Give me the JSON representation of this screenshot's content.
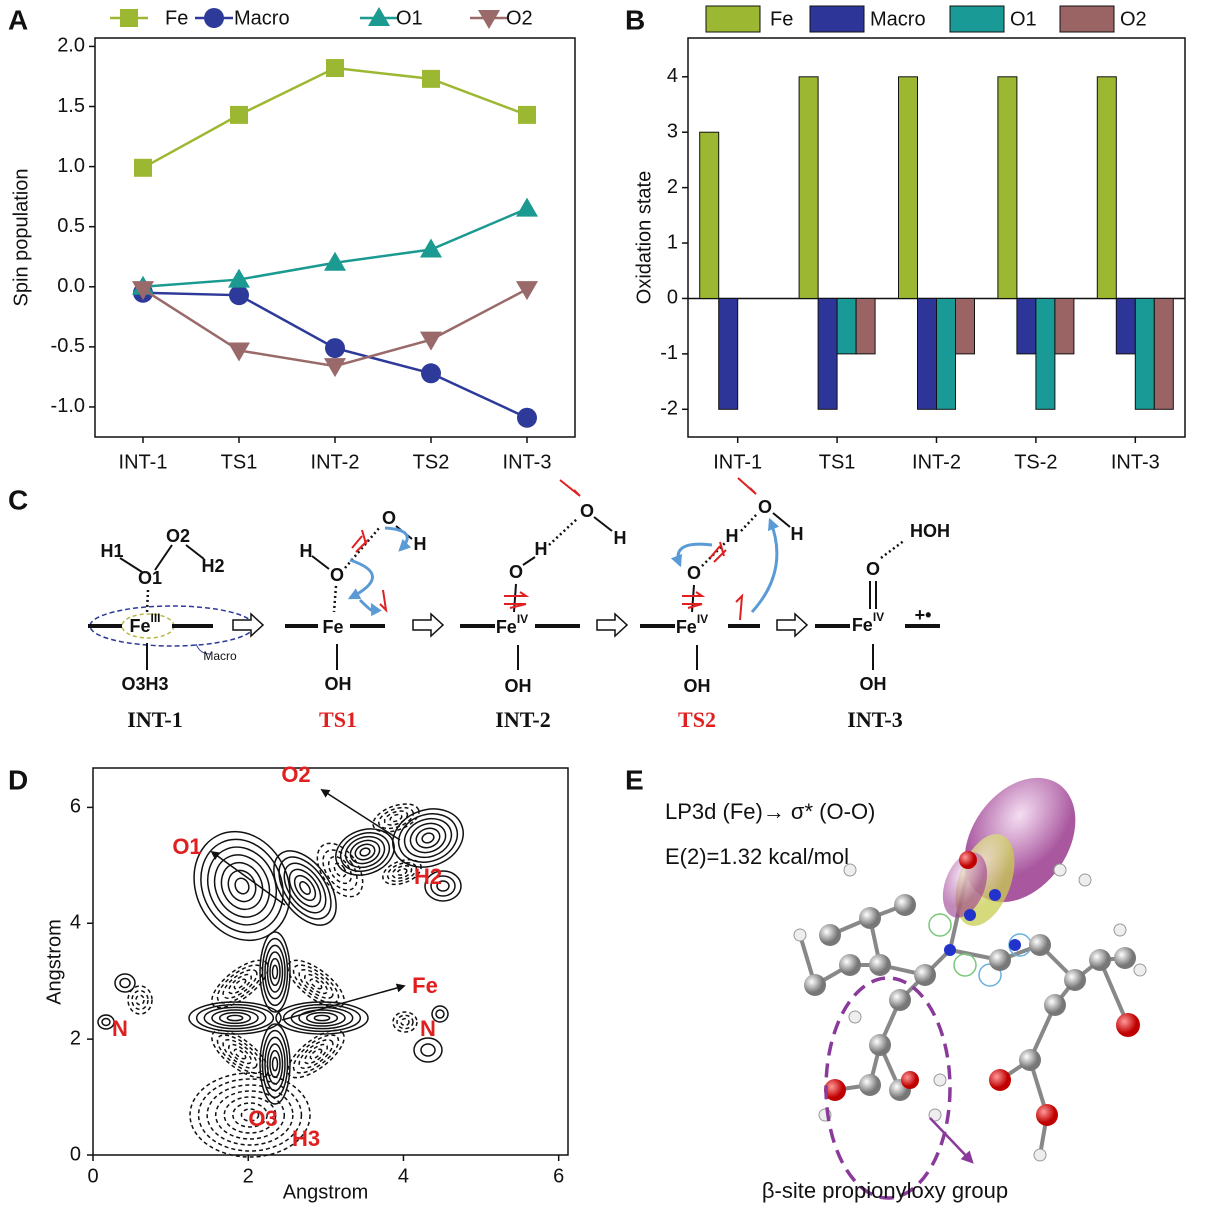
{
  "panel_labels": [
    "A",
    "B",
    "C",
    "D",
    "E"
  ],
  "chart_data": [
    {
      "type": "line",
      "ylabel": "Spin population",
      "categories": [
        "INT-1",
        "TS1",
        "INT-2",
        "TS2",
        "INT-3"
      ],
      "ylim": [
        -1.25,
        2.07
      ],
      "yticks": [
        {
          "value": -1,
          "label": "-1.0"
        },
        {
          "value": -0.5,
          "label": "-0.5"
        },
        {
          "value": 0,
          "label": "0.0"
        },
        {
          "value": 0.5,
          "label": "0.5"
        },
        {
          "value": 1,
          "label": "1.0"
        },
        {
          "value": 1.5,
          "label": "1.5"
        },
        {
          "value": 2,
          "label": "2.0"
        }
      ],
      "legend": "top",
      "series": [
        {
          "name": "Fe",
          "color": "#9cb832",
          "marker": "square",
          "values": [
            0.99,
            1.43,
            1.82,
            1.73,
            1.43
          ]
        },
        {
          "name": "Macro",
          "color": "#2e3a9a",
          "marker": "circle",
          "values": [
            -0.05,
            -0.07,
            -0.51,
            -0.72,
            -1.09
          ]
        },
        {
          "name": "O1",
          "color": "#1a9a90",
          "marker": "triangle",
          "values": [
            0.0,
            0.06,
            0.2,
            0.31,
            0.65
          ]
        },
        {
          "name": "O2",
          "color": "#9a6a6a",
          "marker": "triangle-down",
          "values": [
            -0.02,
            -0.53,
            -0.66,
            -0.44,
            -0.02
          ]
        }
      ]
    },
    {
      "type": "bar",
      "ylabel": "Oxidation state",
      "categories": [
        "INT-1",
        "TS1",
        "INT-2",
        "TS-2",
        "INT-3"
      ],
      "ylim": [
        -2.5,
        4.7
      ],
      "yticks": [
        -2,
        -1,
        0,
        1,
        2,
        3,
        4
      ],
      "legend": "top",
      "series": [
        {
          "name": "Fe",
          "color": "#9cb832",
          "values": [
            3,
            4,
            4,
            4,
            4
          ]
        },
        {
          "name": "Macro",
          "color": "#2e3599",
          "values": [
            -2,
            -2,
            -2,
            -1,
            -1
          ]
        },
        {
          "name": "O1",
          "color": "#1a9a96",
          "values": [
            0,
            -1,
            -2,
            -2,
            -2
          ]
        },
        {
          "name": "O2",
          "color": "#9a6464",
          "values": [
            0,
            -1,
            -1,
            -1,
            -2
          ]
        }
      ]
    },
    {
      "type": "contour",
      "xlabel": "Angstrom",
      "ylabel": "Angstrom",
      "xlim": [
        0,
        6.12
      ],
      "ylim": [
        0,
        6.68
      ],
      "xticks": [
        0,
        2,
        4,
        6
      ],
      "yticks": [
        0,
        2,
        4,
        6
      ],
      "annotations": [
        "O2",
        "O1",
        "Fe",
        "H2",
        "N",
        "N",
        "O3",
        "H3"
      ]
    }
  ],
  "scheme": {
    "species": [
      {
        "label": "INT-1",
        "atoms": [
          "H1",
          "O2",
          "H2",
          "O1",
          "Fe",
          "Macro",
          "O3H3"
        ],
        "fe_state": "III"
      },
      {
        "label": "TS1",
        "atoms": [
          "H",
          "O",
          "O",
          "H",
          "Fe",
          "OH"
        ]
      },
      {
        "label": "INT-2",
        "atoms": [
          "O",
          "H",
          "H",
          "O",
          "Fe",
          "OH"
        ],
        "fe_state": "IV"
      },
      {
        "label": "TS2",
        "atoms": [
          "O",
          "H",
          "H",
          "O",
          "Fe",
          "OH"
        ],
        "fe_state": "IV"
      },
      {
        "label": "INT-3",
        "atoms": [
          "HOH",
          "O",
          "Fe",
          "OH",
          "+•"
        ],
        "fe_state": "IV"
      }
    ]
  },
  "orbital": {
    "title": "LP3d (Fe)→ σ* (O-O)",
    "energy": "E(2)=1.32 kcal/mol",
    "caption": "β-site propionyloxy group"
  }
}
